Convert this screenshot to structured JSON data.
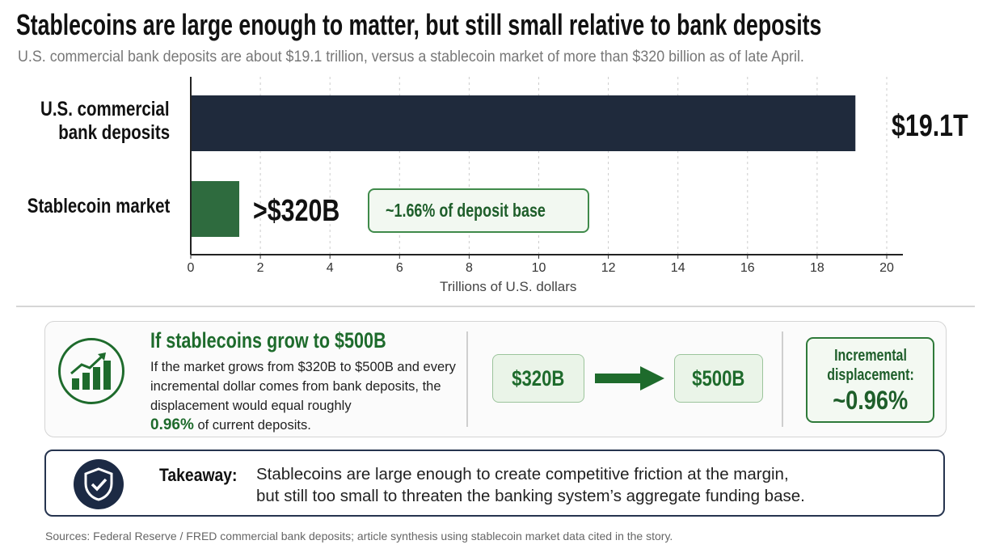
{
  "title": "Stablecoins are large enough to matter, but still small relative to bank deposits",
  "subtitle": "U.S. commercial bank deposits are about $19.1 trillion, versus a stablecoin market of more than $320 billion as of late April.",
  "chart_data": {
    "type": "bar",
    "orientation": "horizontal",
    "categories": [
      "U.S. commercial bank deposits",
      "Stablecoin market"
    ],
    "category_lines": [
      [
        "U.S. commercial",
        "bank deposits"
      ],
      [
        "Stablecoin market"
      ]
    ],
    "values": [
      19.1,
      0.32
    ],
    "value_labels": [
      "$19.1T",
      ">$320B"
    ],
    "colors": [
      "#1f2a3c",
      "#2e6b3e"
    ],
    "xlabel": "Trillions of U.S. dollars",
    "xlim": [
      0,
      20
    ],
    "xticks": [
      "0",
      "2",
      "4",
      "6",
      "8",
      "10",
      "12",
      "14",
      "16",
      "18",
      "20"
    ],
    "grid": "vertical dashed",
    "annotation": {
      "icon": "pie-chart-icon",
      "text": "~1.66% of deposit base"
    }
  },
  "scenario": {
    "icon": "growth-chart-icon",
    "title": "If stablecoins grow to $500B",
    "body": "If the market grows from $320B to $500B and every incremental dollar comes from bank deposits, the displacement would equal roughly",
    "highlight": "0.96%",
    "body_end": " of current deposits.",
    "from": "$320B",
    "to": "$500B",
    "incremental_label": "Incremental displacement:",
    "incremental_value": "~0.96%"
  },
  "takeaway": {
    "icon": "shield-check-icon",
    "label": "Takeaway:",
    "line1": "Stablecoins are large enough to create competitive friction at the margin,",
    "line2": "but still too small to threaten the banking system’s aggregate funding base."
  },
  "sources": "Sources: Federal Reserve / FRED commercial bank deposits; article synthesis using stablecoin market data cited in the story."
}
